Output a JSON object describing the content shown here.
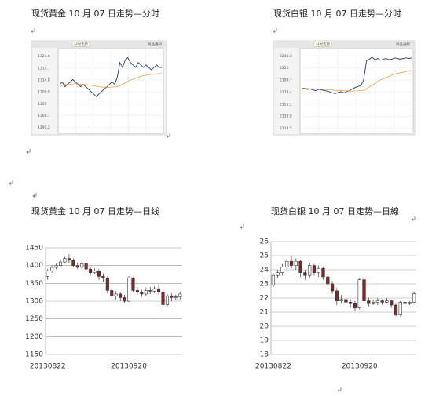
{
  "chart_data": [
    {
      "type": "line",
      "title": "现货黄金 10 月 07 日走势—分时",
      "tab": "分时走势",
      "link": "商品通知",
      "ylim": [
        1292.8,
        1327.1
      ],
      "yticks": [
        1295.2,
        1300.1,
        1305.0,
        1309.9,
        1314.8,
        1319.7,
        1324.6
      ],
      "series": [
        {
          "name": "价格",
          "color": "#1f3a6b",
          "values": [
            1313,
            1314,
            1312,
            1313,
            1314,
            1315,
            1314,
            1313,
            1312,
            1313,
            1312,
            1311,
            1310,
            1309,
            1308,
            1309,
            1310,
            1311,
            1312,
            1313,
            1314,
            1313,
            1316,
            1322,
            1320,
            1323,
            1324,
            1322,
            1321,
            1320,
            1322,
            1321,
            1320,
            1321,
            1320,
            1319,
            1320,
            1321,
            1320,
            1320
          ]
        },
        {
          "name": "均价",
          "color": "#e8922b",
          "values": [
            1312,
            1312.5,
            1313,
            1313,
            1313,
            1313.2,
            1313.2,
            1313.1,
            1313,
            1313,
            1312.9,
            1312.8,
            1312.6,
            1312.4,
            1312.2,
            1312,
            1311.9,
            1311.8,
            1311.8,
            1311.8,
            1311.9,
            1312,
            1312.1,
            1312.5,
            1313,
            1313.6,
            1314.2,
            1314.8,
            1315.2,
            1315.6,
            1316,
            1316.3,
            1316.6,
            1316.8,
            1317,
            1317.1,
            1317.2,
            1317.3,
            1317.4,
            1317.5
          ]
        }
      ]
    },
    {
      "type": "line",
      "title": "现货白银 10 月 07 日走势—分时",
      "tab": "分时走势",
      "link": "商品通知",
      "ylim": [
        2110,
        2250
      ],
      "yticks": [
        2118.5,
        2138.8,
        2159.1,
        2179.4,
        2199.7,
        2220.0,
        2240.3
      ],
      "series": [
        {
          "name": "价格",
          "color": "#1f3a6b",
          "values": [
            2185,
            2186,
            2184,
            2185,
            2183,
            2182,
            2184,
            2183,
            2182,
            2181,
            2180,
            2178,
            2177,
            2179,
            2180,
            2178,
            2180,
            2182,
            2185,
            2187,
            2189,
            2190,
            2200,
            2232,
            2235,
            2238,
            2234,
            2236,
            2233,
            2235,
            2236,
            2234,
            2235,
            2237,
            2236,
            2235,
            2236,
            2237,
            2236,
            2237
          ]
        },
        {
          "name": "均价",
          "color": "#e8922b",
          "values": [
            2186,
            2186,
            2185.5,
            2185,
            2185,
            2184.5,
            2184.3,
            2184,
            2183.8,
            2183.5,
            2183.2,
            2182.8,
            2182.4,
            2182,
            2181.8,
            2181.5,
            2181.3,
            2181.2,
            2181.2,
            2181.4,
            2181.6,
            2181.9,
            2182.5,
            2185,
            2188,
            2191,
            2194,
            2197,
            2200,
            2202,
            2204,
            2206,
            2208,
            2209.5,
            2211,
            2212,
            2213,
            2214,
            2215,
            2216
          ]
        }
      ]
    },
    {
      "type": "candlestick",
      "title": "现货黄金 10 月 07 日走势—日线",
      "up_color": "#ffffff",
      "down_color": "#7b2a2a",
      "grid": true,
      "ylim": [
        1150,
        1450
      ],
      "yticks": [
        1150,
        1200,
        1250,
        1300,
        1350,
        1400,
        1450
      ],
      "categories": [
        "20130822",
        null,
        null,
        null,
        null,
        null,
        null,
        null,
        null,
        null,
        null,
        null,
        null,
        null,
        null,
        null,
        null,
        null,
        null,
        "20130920",
        null,
        null,
        null,
        null,
        null,
        null,
        null,
        null,
        null,
        null,
        null,
        null
      ],
      "open": [
        1370,
        1385,
        1395,
        1400,
        1410,
        1420,
        1415,
        1400,
        1395,
        1405,
        1390,
        1380,
        1385,
        1370,
        1365,
        1330,
        1315,
        1320,
        1310,
        1300,
        1365,
        1330,
        1325,
        1320,
        1330,
        1328,
        1335,
        1325,
        1290,
        1315,
        1310,
        1312
      ],
      "high": [
        1390,
        1400,
        1405,
        1418,
        1425,
        1432,
        1420,
        1408,
        1412,
        1410,
        1395,
        1392,
        1390,
        1378,
        1370,
        1338,
        1328,
        1325,
        1318,
        1370,
        1368,
        1340,
        1332,
        1338,
        1340,
        1342,
        1348,
        1330,
        1320,
        1322,
        1318,
        1325
      ],
      "low": [
        1360,
        1380,
        1390,
        1395,
        1405,
        1408,
        1395,
        1390,
        1385,
        1385,
        1372,
        1375,
        1360,
        1355,
        1322,
        1308,
        1305,
        1300,
        1295,
        1298,
        1325,
        1318,
        1312,
        1315,
        1320,
        1322,
        1318,
        1278,
        1285,
        1300,
        1302,
        1305
      ],
      "close": [
        1385,
        1395,
        1400,
        1410,
        1420,
        1415,
        1400,
        1395,
        1405,
        1390,
        1380,
        1385,
        1370,
        1365,
        1330,
        1315,
        1320,
        1310,
        1300,
        1365,
        1330,
        1325,
        1320,
        1330,
        1328,
        1335,
        1325,
        1290,
        1315,
        1310,
        1312,
        1320
      ]
    },
    {
      "type": "candlestick",
      "title": "现货白银 10 月 07 日走势—日線",
      "up_color": "#ffffff",
      "down_color": "#7b2a2a",
      "grid": true,
      "ylim": [
        18,
        26
      ],
      "yticks": [
        18,
        19,
        20,
        21,
        22,
        23,
        24,
        25,
        26
      ],
      "categories": [
        "20130822",
        null,
        null,
        null,
        null,
        null,
        null,
        null,
        null,
        null,
        null,
        null,
        null,
        null,
        null,
        null,
        null,
        null,
        null,
        "20130920",
        null,
        null,
        null,
        null,
        null,
        null,
        null,
        null,
        null,
        null,
        null,
        null
      ],
      "open": [
        22.9,
        23.6,
        23.8,
        24.2,
        24.6,
        24.3,
        24.6,
        23.8,
        23.6,
        24.3,
        23.8,
        24.1,
        23.5,
        23.0,
        22.5,
        21.8,
        21.9,
        21.7,
        21.6,
        21.3,
        23.3,
        21.8,
        21.6,
        21.7,
        21.8,
        21.7,
        21.8,
        21.5,
        20.8,
        21.7,
        21.6,
        21.7
      ],
      "high": [
        23.8,
        24.0,
        24.4,
        24.8,
        25.0,
        24.8,
        24.7,
        24.0,
        24.5,
        24.4,
        24.3,
        24.2,
        23.7,
        23.2,
        22.7,
        22.2,
        22.1,
        21.9,
        21.8,
        23.4,
        23.4,
        22.0,
        21.9,
        22.0,
        21.9,
        22.0,
        21.9,
        21.6,
        21.8,
        21.9,
        21.8,
        22.4
      ],
      "low": [
        22.8,
        23.4,
        23.6,
        24.0,
        24.1,
        24.0,
        23.5,
        23.3,
        23.4,
        23.6,
        23.5,
        23.3,
        22.8,
        22.3,
        21.5,
        21.6,
        21.4,
        21.3,
        21.1,
        21.2,
        21.6,
        21.4,
        21.5,
        21.5,
        21.5,
        21.6,
        21.3,
        20.7,
        20.7,
        21.5,
        21.5,
        21.6
      ],
      "close": [
        23.6,
        23.8,
        24.2,
        24.6,
        24.3,
        24.6,
        23.8,
        23.6,
        24.3,
        23.8,
        24.1,
        23.5,
        23.0,
        22.5,
        21.8,
        21.9,
        21.7,
        21.6,
        21.3,
        23.3,
        21.8,
        21.6,
        21.7,
        21.8,
        21.7,
        21.8,
        21.5,
        20.8,
        21.7,
        21.6,
        21.7,
        22.3
      ]
    }
  ]
}
